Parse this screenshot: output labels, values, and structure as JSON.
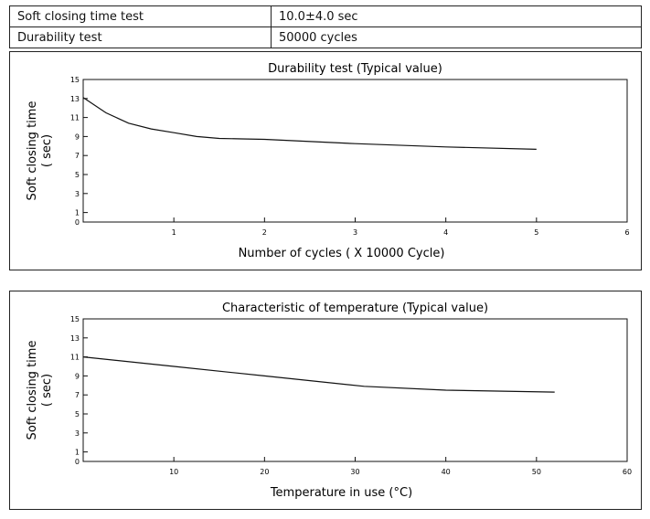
{
  "specs": [
    {
      "label": "Soft closing time test",
      "value": "10.0±4.0 sec"
    },
    {
      "label": "Durability test",
      "value": "50000 cycles"
    }
  ],
  "chart_data": [
    {
      "type": "line",
      "title": "Durability test (Typical value)",
      "xlabel": "Number of cycles ( X 10000 Cycle)",
      "ylabel": "Soft closing time",
      "ylabel_unit": "( sec)",
      "xlim": [
        0,
        6
      ],
      "ylim": [
        0,
        15
      ],
      "xticks": [
        1,
        2,
        3,
        4,
        5,
        6
      ],
      "yticks": [
        0,
        1,
        3,
        5,
        7,
        9,
        11,
        13,
        15
      ],
      "grid": false,
      "series": [
        {
          "values": [
            [
              0,
              13.1
            ],
            [
              0.25,
              11.5
            ],
            [
              0.5,
              10.4
            ],
            [
              0.75,
              9.8
            ],
            [
              1,
              9.4
            ],
            [
              1.25,
              9.0
            ],
            [
              1.5,
              8.8
            ],
            [
              1.75,
              8.75
            ],
            [
              2,
              8.7
            ],
            [
              3,
              8.25
            ],
            [
              4,
              7.9
            ],
            [
              5,
              7.65
            ]
          ]
        }
      ]
    },
    {
      "type": "line",
      "title": "Characteristic of temperature (Typical value)",
      "xlabel": "Temperature in use (°C)",
      "ylabel": "Soft closing time",
      "ylabel_unit": "( sec)",
      "xlim": [
        0,
        60
      ],
      "ylim": [
        0,
        15
      ],
      "xticks": [
        10,
        20,
        30,
        40,
        50,
        60
      ],
      "yticks": [
        0,
        1,
        3,
        5,
        7,
        9,
        11,
        13,
        15
      ],
      "grid": false,
      "series": [
        {
          "values": [
            [
              0,
              11.0
            ],
            [
              10,
              10.0
            ],
            [
              20,
              9.0
            ],
            [
              31,
              7.9
            ],
            [
              40,
              7.5
            ],
            [
              52,
              7.3
            ]
          ]
        }
      ]
    }
  ]
}
